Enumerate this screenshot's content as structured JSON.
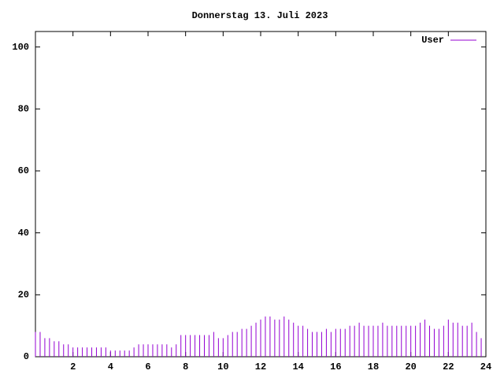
{
  "chart_data": {
    "type": "impulses",
    "title": "Donnerstag 13. Juli 2023",
    "x": [
      0,
      0.25,
      0.5,
      0.75,
      1,
      1.25,
      1.5,
      1.75,
      2,
      2.25,
      2.5,
      2.75,
      3,
      3.25,
      3.5,
      3.75,
      4,
      4.25,
      4.5,
      4.75,
      5,
      5.25,
      5.5,
      5.75,
      6,
      6.25,
      6.5,
      6.75,
      7,
      7.25,
      7.5,
      7.75,
      8,
      8.25,
      8.5,
      8.75,
      9,
      9.25,
      9.5,
      9.75,
      10,
      10.25,
      10.5,
      10.75,
      11,
      11.25,
      11.5,
      11.75,
      12,
      12.25,
      12.5,
      12.75,
      13,
      13.25,
      13.5,
      13.75,
      14,
      14.25,
      14.5,
      14.75,
      15,
      15.25,
      15.5,
      15.75,
      16,
      16.25,
      16.5,
      16.75,
      17,
      17.25,
      17.5,
      17.75,
      18,
      18.25,
      18.5,
      18.75,
      19,
      19.25,
      19.5,
      19.75,
      20,
      20.25,
      20.5,
      20.75,
      21,
      21.25,
      21.5,
      21.75,
      22,
      22.25,
      22.5,
      22.75,
      23,
      23.25,
      23.5,
      23.75
    ],
    "series": [
      {
        "name": "User",
        "color": "#9400d3",
        "values": [
          8,
          8,
          6,
          6,
          5,
          5,
          4,
          4,
          3,
          3,
          3,
          3,
          3,
          3,
          3,
          3,
          2,
          2,
          2,
          2,
          2,
          3,
          4,
          4,
          4,
          4,
          4,
          4,
          4,
          3,
          4,
          7,
          7,
          7,
          7,
          7,
          7,
          7,
          8,
          6,
          6,
          7,
          8,
          8,
          9,
          9,
          10,
          11,
          12,
          13,
          13,
          12,
          12,
          13,
          12,
          11,
          10,
          10,
          9,
          8,
          8,
          8,
          9,
          8,
          9,
          9,
          9,
          10,
          10,
          11,
          10,
          10,
          10,
          10,
          11,
          10,
          10,
          10,
          10,
          10,
          10,
          10,
          11,
          12,
          10,
          9,
          9,
          10,
          12,
          11,
          11,
          10,
          10,
          11,
          8,
          6
        ]
      }
    ],
    "xlim": [
      0,
      24
    ],
    "xticks": [
      2,
      4,
      6,
      8,
      10,
      12,
      14,
      16,
      18,
      20,
      22,
      24
    ],
    "ylim": [
      0,
      105
    ],
    "yticks": [
      0,
      20,
      40,
      60,
      80,
      100
    ],
    "legend": "top-right"
  }
}
